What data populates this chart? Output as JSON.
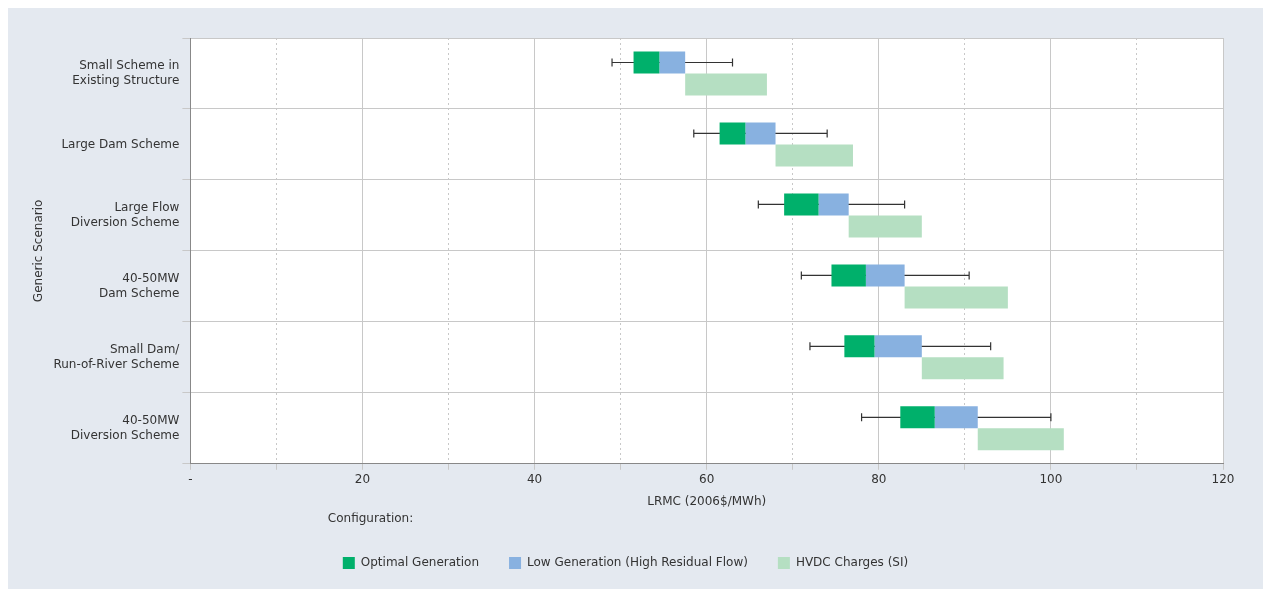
{
  "chart_data": {
    "type": "bar",
    "orientation": "horizontal",
    "categories": [
      "Small Scheme in\nExisting Structure",
      "Large Dam Scheme",
      "Large Flow\nDiversion Scheme",
      "40-50MW\nDam Scheme",
      "Small Dam/\nRun-of-River Scheme",
      "40-50MW\nDiversion Scheme"
    ],
    "series": [
      {
        "name": "Optimal Generation",
        "color": "#00b06b",
        "base": [
          51.5,
          61.5,
          69,
          74.5,
          76,
          82.5
        ],
        "values": [
          3,
          3,
          4,
          4,
          3.5,
          4
        ]
      },
      {
        "name": "Low Generation (High Residual Flow)",
        "color": "#88b1e0",
        "base": [
          54.5,
          64.5,
          73,
          78.5,
          79.5,
          86.5
        ],
        "values": [
          3,
          3.5,
          3.5,
          4.5,
          5.5,
          5
        ],
        "errors": [
          [
            49,
            63
          ],
          [
            58.5,
            74
          ],
          [
            66,
            83
          ],
          [
            71,
            90.5
          ],
          [
            72,
            93
          ],
          [
            78,
            100
          ]
        ]
      },
      {
        "name": "HVDC Charges (SI)",
        "color": "#b5dfc2",
        "base": [
          57.5,
          68,
          76.5,
          83,
          85,
          91.5
        ],
        "values": [
          9.5,
          9,
          8.5,
          12,
          9.5,
          10
        ]
      }
    ],
    "xlabel": "LRMC (2006$/MWh)",
    "ylabel": "Generic Scenario",
    "legend_title": "Configuration:",
    "legend": "bottom",
    "xlim": [
      0,
      120
    ],
    "xticks": [
      {
        "value": 0,
        "label": "-"
      },
      {
        "value": 10,
        "label": null
      },
      20,
      {
        "value": 30,
        "label": null
      },
      40,
      {
        "value": 50,
        "label": null
      },
      60,
      {
        "value": 70,
        "label": null
      },
      80,
      {
        "value": 90,
        "label": null
      },
      100,
      {
        "value": 110,
        "label": null
      },
      120
    ],
    "grid": true
  }
}
